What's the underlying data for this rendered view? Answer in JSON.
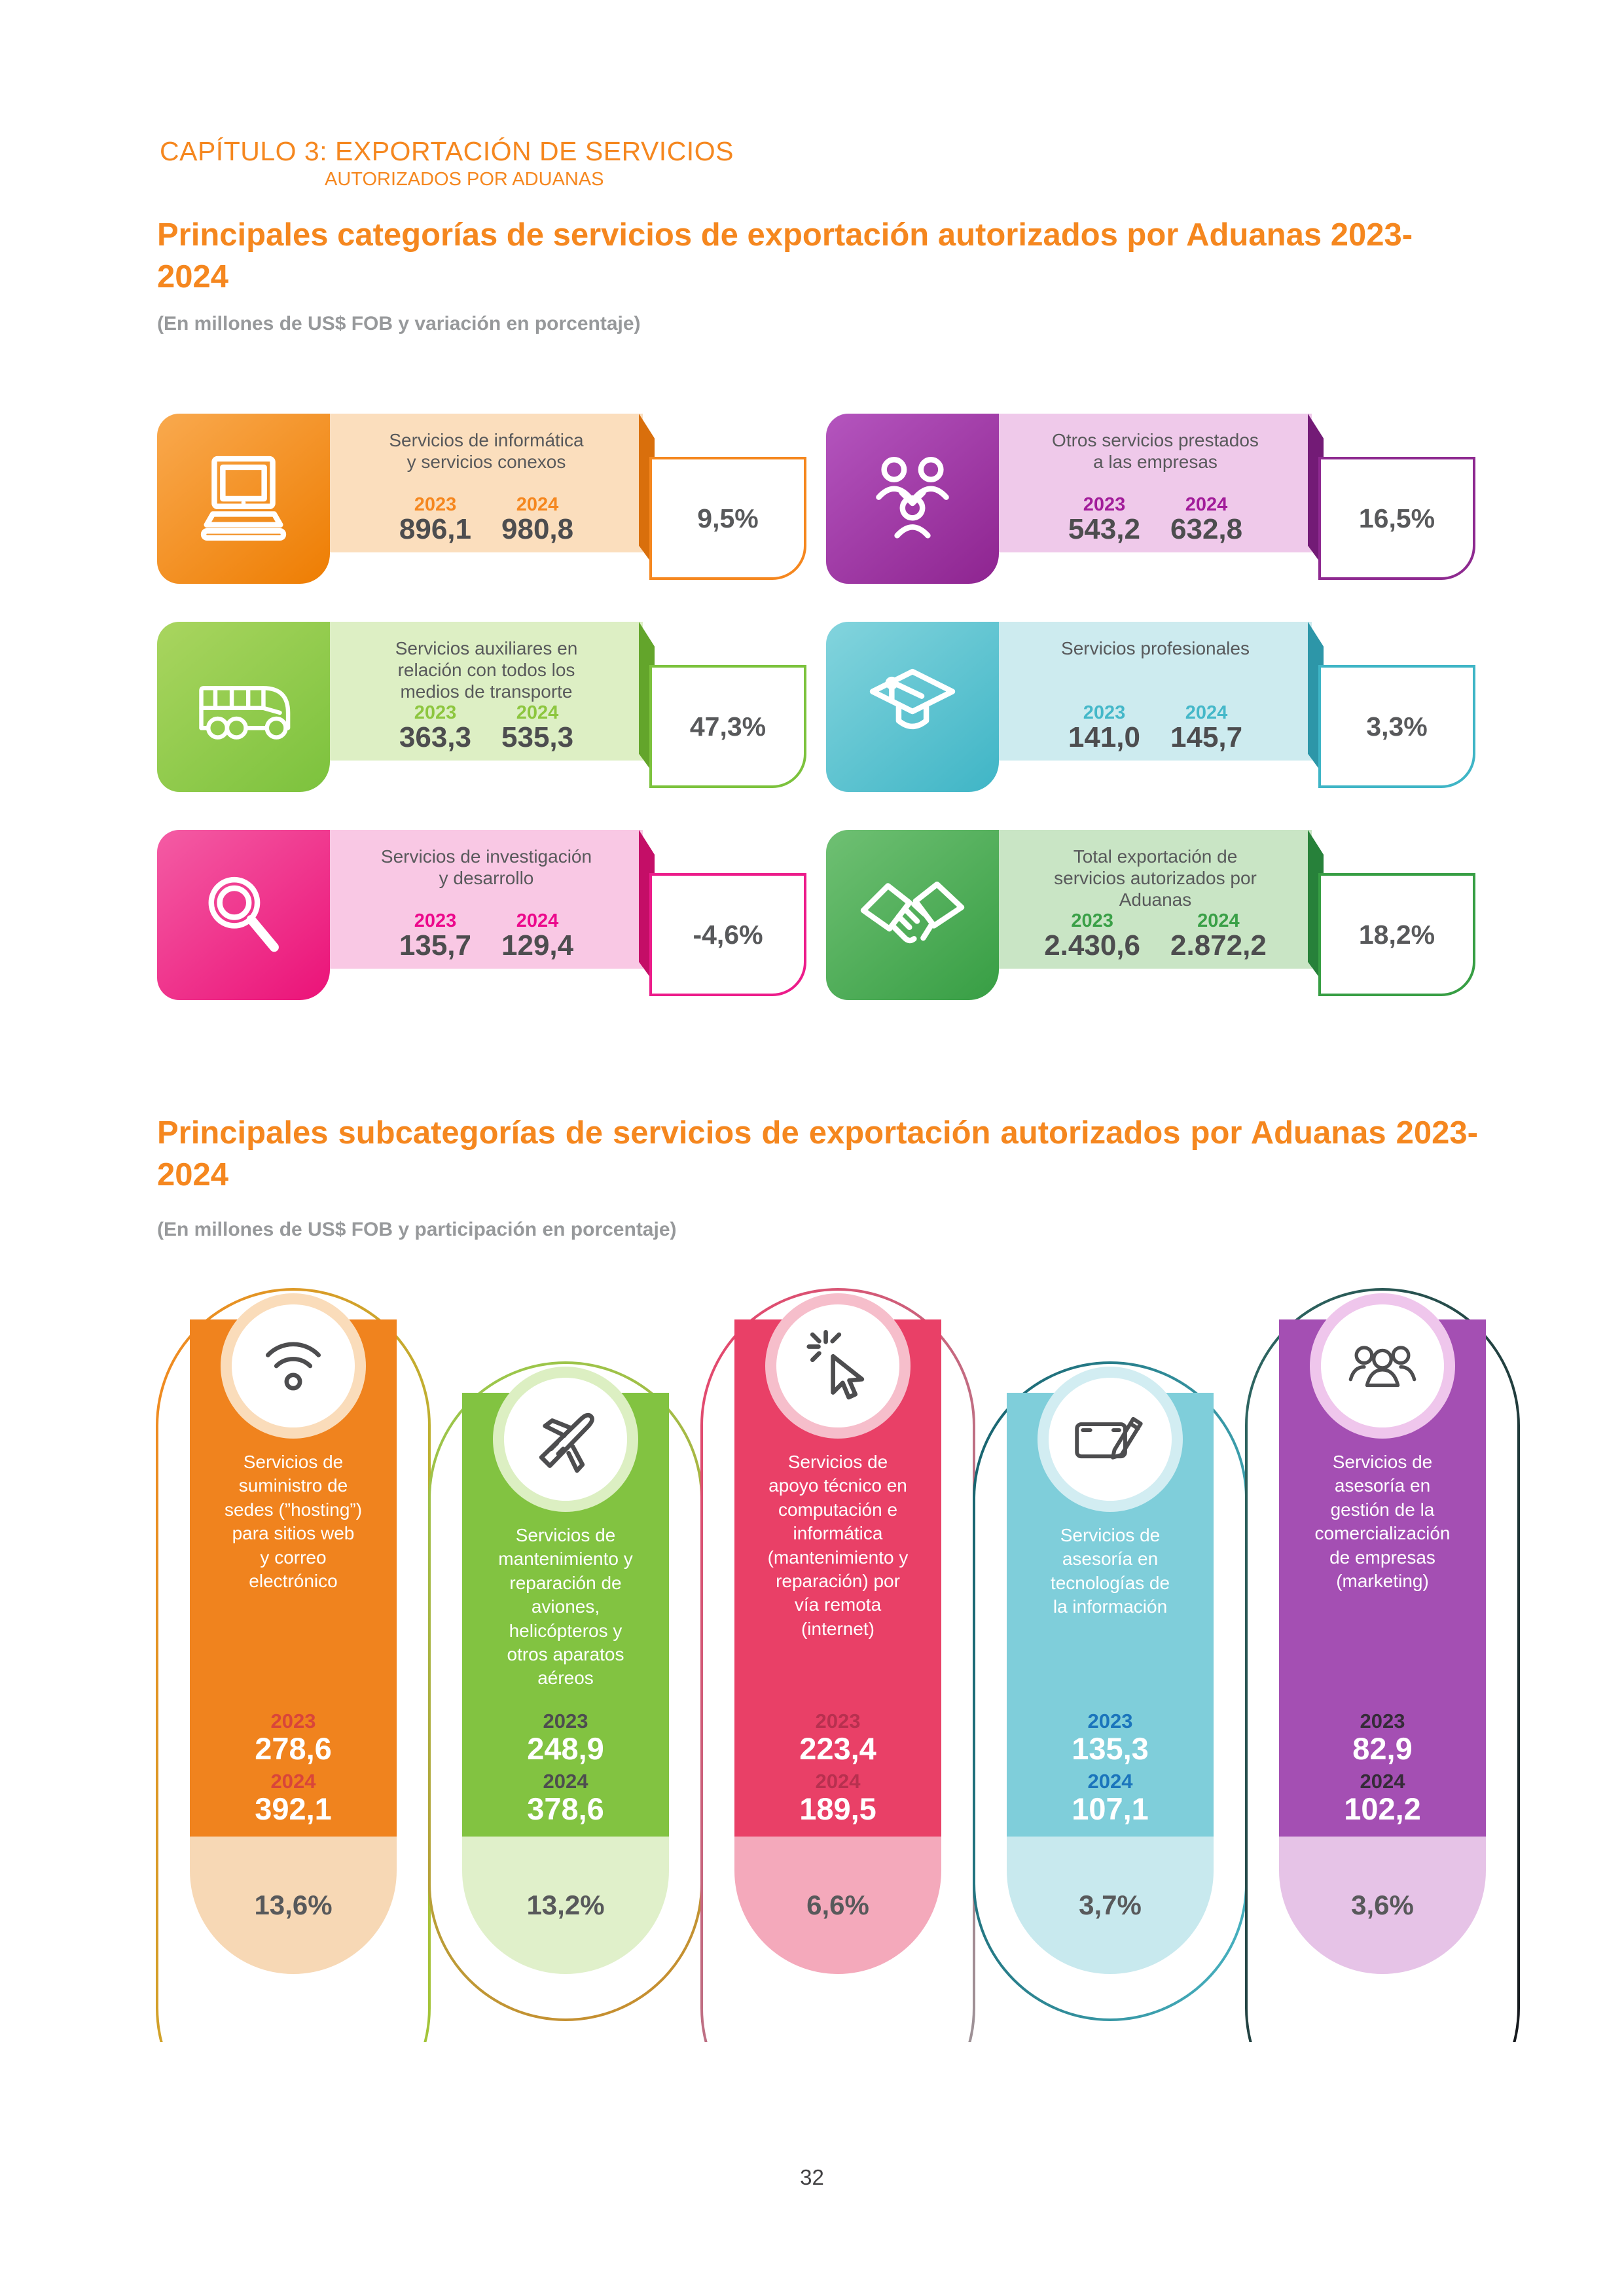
{
  "header": {
    "chapter_line1": "CAPÍTULO 3: EXPORTACIÓN DE SERVICIOS",
    "chapter_line2": "AUTORIZADOS POR ADUANAS"
  },
  "section1": {
    "title": "Principales categorías de servicios de exportación autorizados por Aduanas 2023-2024",
    "subtitle": "(En millones de US$ FOB y variación en porcentaje)",
    "cards": [
      {
        "icon": "computer-icon",
        "title": "Servicios de informática\ny servicios conexos",
        "year1_label": "2023",
        "year1_value": "896,1",
        "year2_label": "2024",
        "year2_value": "980,8",
        "variation": "9,5%",
        "colors": {
          "main": "#F5871F",
          "tile1": "#F9A94E",
          "tile2": "#EE7D02",
          "panel": "#FBDEBD",
          "year": "#F5871F",
          "fold": "#D96F0C"
        }
      },
      {
        "icon": "people-network-icon",
        "title": "Otros servicios prestados\na las empresas",
        "year1_label": "2023",
        "year1_value": "543,2",
        "year2_label": "2024",
        "year2_value": "632,8",
        "variation": "16,5%",
        "colors": {
          "main": "#8E2A90",
          "tile1": "#B455BE",
          "tile2": "#8E2490",
          "panel": "#EFC9EA",
          "year": "#A21C9A",
          "fold": "#731B76"
        }
      },
      {
        "icon": "bus-icon",
        "title": "Servicios auxiliares en\nrelación con todos los\nmedios de transporte",
        "year1_label": "2023",
        "year1_value": "363,3",
        "year2_label": "2024",
        "year2_value": "535,3",
        "variation": "47,3%",
        "colors": {
          "main": "#7CC23D",
          "tile1": "#A9D55F",
          "tile2": "#7CC23D",
          "panel": "#DDEFC4",
          "year": "#8DC63F",
          "fold": "#63A52B"
        }
      },
      {
        "icon": "graduation-cap-icon",
        "title": "Servicios profesionales",
        "year1_label": "2023",
        "year1_value": "141,0",
        "year2_label": "2024",
        "year2_value": "145,7",
        "variation": "3,3%",
        "colors": {
          "main": "#3FB5C6",
          "tile1": "#83D4DD",
          "tile2": "#3FB5C6",
          "panel": "#CDEBEF",
          "year": "#45B8C9",
          "fold": "#2D96A8"
        }
      },
      {
        "icon": "magnifier-icon",
        "title": "Servicios de investigación\ny desarrollo",
        "year1_label": "2023",
        "year1_value": "135,7",
        "year2_label": "2024",
        "year2_value": "129,4",
        "variation": "-4,6%",
        "colors": {
          "main": "#EC1C8A",
          "tile1": "#F45CA4",
          "tile2": "#EB1278",
          "panel": "#F9C8E4",
          "year": "#EC098C",
          "fold": "#C40E67"
        }
      },
      {
        "icon": "handshake-icon",
        "title": "Total exportación de\nservicios autorizados por\nAduanas",
        "year1_label": "2023",
        "year1_value": "2.430,6",
        "year2_label": "2024",
        "year2_value": "2.872,2",
        "variation": "18,2%",
        "colors": {
          "main": "#379E44",
          "tile1": "#6FC073",
          "tile2": "#379E44",
          "panel": "#C9E5C5",
          "year": "#3AA047",
          "fold": "#27813A"
        }
      }
    ]
  },
  "section2": {
    "title": "Principales subcategorías de servicios de exportación autorizados por Aduanas 2023-2024",
    "subtitle": "(En millones de US$ FOB y participación en porcentaje)",
    "pills": [
      {
        "icon": "wifi-icon",
        "title": "Servicios de\nsuministro de\nsedes (”hosting”)\npara sitios web\ny correo\nelectrónico",
        "year1_label": "2023",
        "year1_value": "278,6",
        "year2_label": "2024",
        "year2_value": "392,1",
        "share": "13,6%",
        "colors": {
          "body": "#F0831E",
          "foot": "#F7D8B5",
          "ring": "#FADCBA",
          "pyear": "#D9453A",
          "og1": "#F5871F",
          "og2": "#9DC93B",
          "oga": "105deg"
        }
      },
      {
        "icon": "plane-icon",
        "title": "Servicios de\nmantenimiento y\nreparación de\naviones,\nhelicópteros y\notros aparatos\naéreos",
        "year1_label": "2023",
        "year1_value": "248,9",
        "year2_label": "2024",
        "year2_value": "378,6",
        "share": "13,2%",
        "colors": {
          "body": "#82C341",
          "foot": "#E0F0CA",
          "ring": "#DCEFC2",
          "pyear": "#4D4D4F",
          "og1": "#98CB4D",
          "og2": "#C98A2E",
          "oga": "150deg"
        }
      },
      {
        "icon": "cursor-click-icon",
        "title": "Servicios de\napoyo técnico en\ncomputación e\ninformática\n(mantenimiento y\nreparación) por\nvía remota\n(internet)",
        "year1_label": "2023",
        "year1_value": "223,4",
        "year2_label": "2024",
        "year2_value": "189,5",
        "share": "6,6%",
        "colors": {
          "body": "#E94067",
          "foot": "#F4A9BB",
          "ring": "#F6BECB",
          "pyear": "#B7304F",
          "og1": "#E8446B",
          "og2": "#97989A",
          "oga": "115deg"
        }
      },
      {
        "icon": "tablet-pen-icon",
        "title": "Servicios de\nasesoría en\ntecnologías de\nla información",
        "year1_label": "2023",
        "year1_value": "135,3",
        "year2_label": "2024",
        "year2_value": "107,1",
        "share": "3,7%",
        "colors": {
          "body": "#7FCEDA",
          "foot": "#C8E9EE",
          "ring": "#D2EDF2",
          "pyear": "#1B75BC",
          "og1": "#16606B",
          "og2": "#49B4C3",
          "oga": "100deg"
        }
      },
      {
        "icon": "group-icon",
        "title": "Servicios de\nasesoría en\ngestión de la\ncomercialización\nde empresas\n(marketing)",
        "year1_label": "2023",
        "year1_value": "82,9",
        "year2_label": "2024",
        "year2_value": "102,2",
        "share": "3,6%",
        "colors": {
          "body": "#A44FB3",
          "foot": "#E6C3E7",
          "ring": "#EFC6EC",
          "pyear": "#352B38",
          "og1": "#2F6B66",
          "og2": "#141318",
          "oga": "110deg"
        }
      }
    ]
  },
  "footer": {
    "page_number": "32"
  }
}
